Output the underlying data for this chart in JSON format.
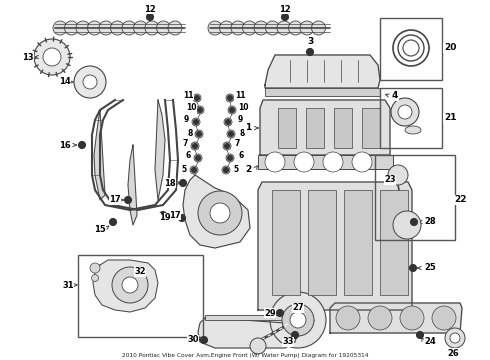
{
  "title": "2010 Pontiac Vibe Cover Asm,Engine Front (W/ Water Pump) Diagram for 19205314",
  "bg_color": "#ffffff",
  "lc": "#444444",
  "figsize": [
    4.9,
    3.6
  ],
  "dpi": 100
}
